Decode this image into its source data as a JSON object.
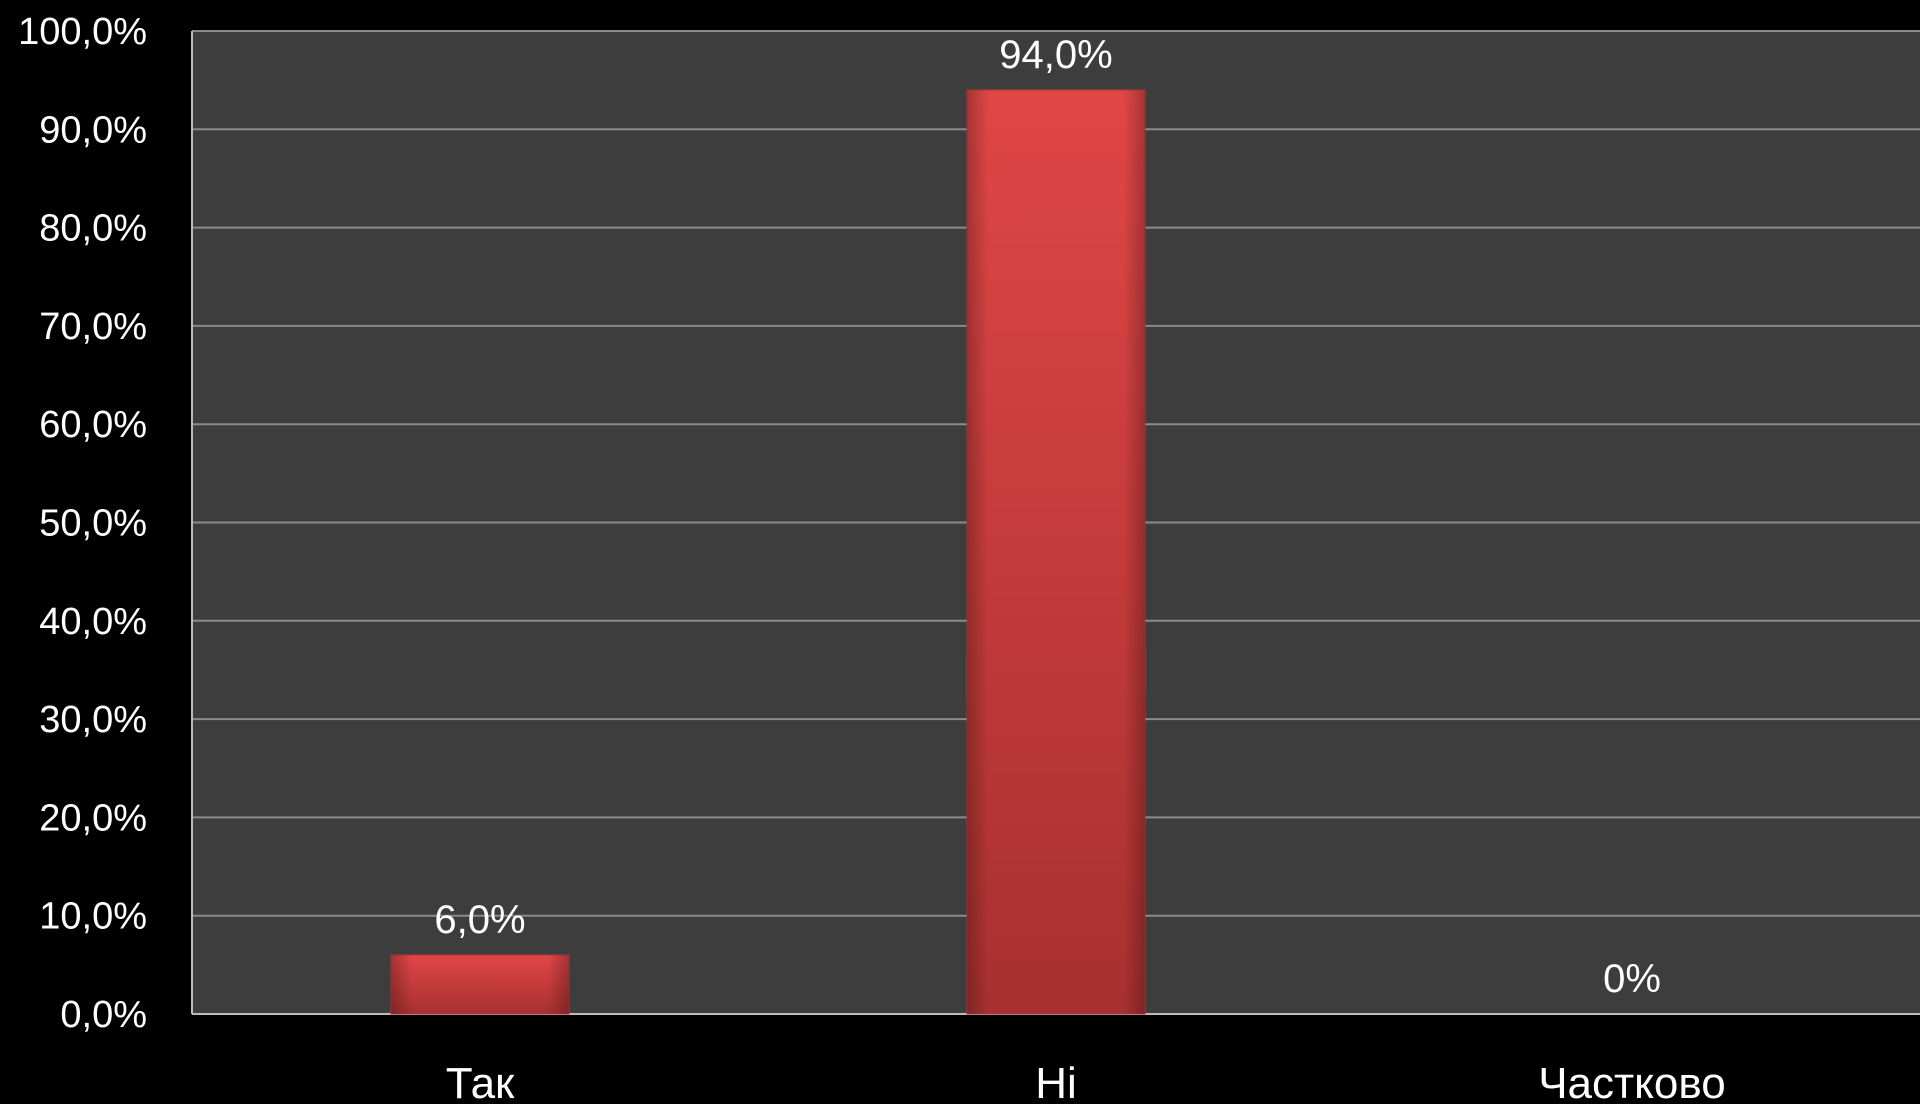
{
  "chart_data": {
    "type": "bar",
    "categories": [
      "Так",
      "Ні",
      "Частково"
    ],
    "values": [
      6.0,
      94.0,
      0
    ],
    "data_labels": [
      "6,0%",
      "94,0%",
      "0%"
    ],
    "y_ticks": [
      "0,0%",
      "10,0%",
      "20,0%",
      "30,0%",
      "40,0%",
      "50,0%",
      "60,0%",
      "70,0%",
      "80,0%",
      "90,0%",
      "100,0%"
    ],
    "ylim": [
      0,
      100
    ],
    "grid": true,
    "legend": "none",
    "title": "",
    "xlabel": "",
    "ylabel": ""
  },
  "colors": {
    "page_background": "#000000",
    "plot_background": "#3d3d3d",
    "gridline": "#8a8a8a",
    "bar": "#d94040",
    "text": "#ffffff"
  }
}
